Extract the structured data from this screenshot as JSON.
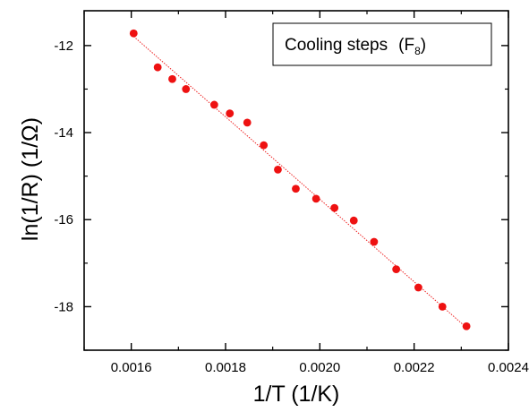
{
  "chart_data": {
    "type": "scatter",
    "xlabel": "1/T (1/K)",
    "ylabel": "ln(1/R) (1/Ω)",
    "legend": {
      "text": "Cooling steps",
      "open_paren": "(F",
      "subscript": "8",
      "close_paren": ")",
      "placement": "top-right"
    },
    "xlim": [
      0.0015,
      0.0024
    ],
    "ylim": [
      -19.0,
      -11.2
    ],
    "x_ticks": [
      0.0016,
      0.0018,
      0.002,
      0.0022,
      0.0024
    ],
    "x_tick_labels": [
      "0.0016",
      "0.0018",
      "0.0020",
      "0.0022",
      "0.0024"
    ],
    "y_ticks": [
      -12,
      -14,
      -16,
      -18
    ],
    "y_tick_labels": [
      "-12",
      "-14",
      "-16",
      "-18"
    ],
    "grid": false,
    "marker_color": "#ee1111",
    "fit_color": "#ee2222",
    "series": [
      {
        "kind": "points",
        "x": [
          0.001605,
          0.001656,
          0.001687,
          0.001716,
          0.001776,
          0.001809,
          0.001846,
          0.001881,
          0.001911,
          0.001949,
          0.001992,
          0.002031,
          0.002072,
          0.002115,
          0.002162,
          0.002209,
          0.00226,
          0.002311
        ],
        "y": [
          -11.72,
          -12.5,
          -12.77,
          -13.0,
          -13.36,
          -13.56,
          -13.77,
          -14.29,
          -14.85,
          -15.29,
          -15.52,
          -15.73,
          -16.02,
          -16.51,
          -17.14,
          -17.56,
          -18.0,
          -18.45
        ]
      },
      {
        "kind": "fit-line",
        "x": [
          0.001605,
          0.002311
        ],
        "y": [
          -11.79,
          -18.48
        ]
      }
    ]
  }
}
